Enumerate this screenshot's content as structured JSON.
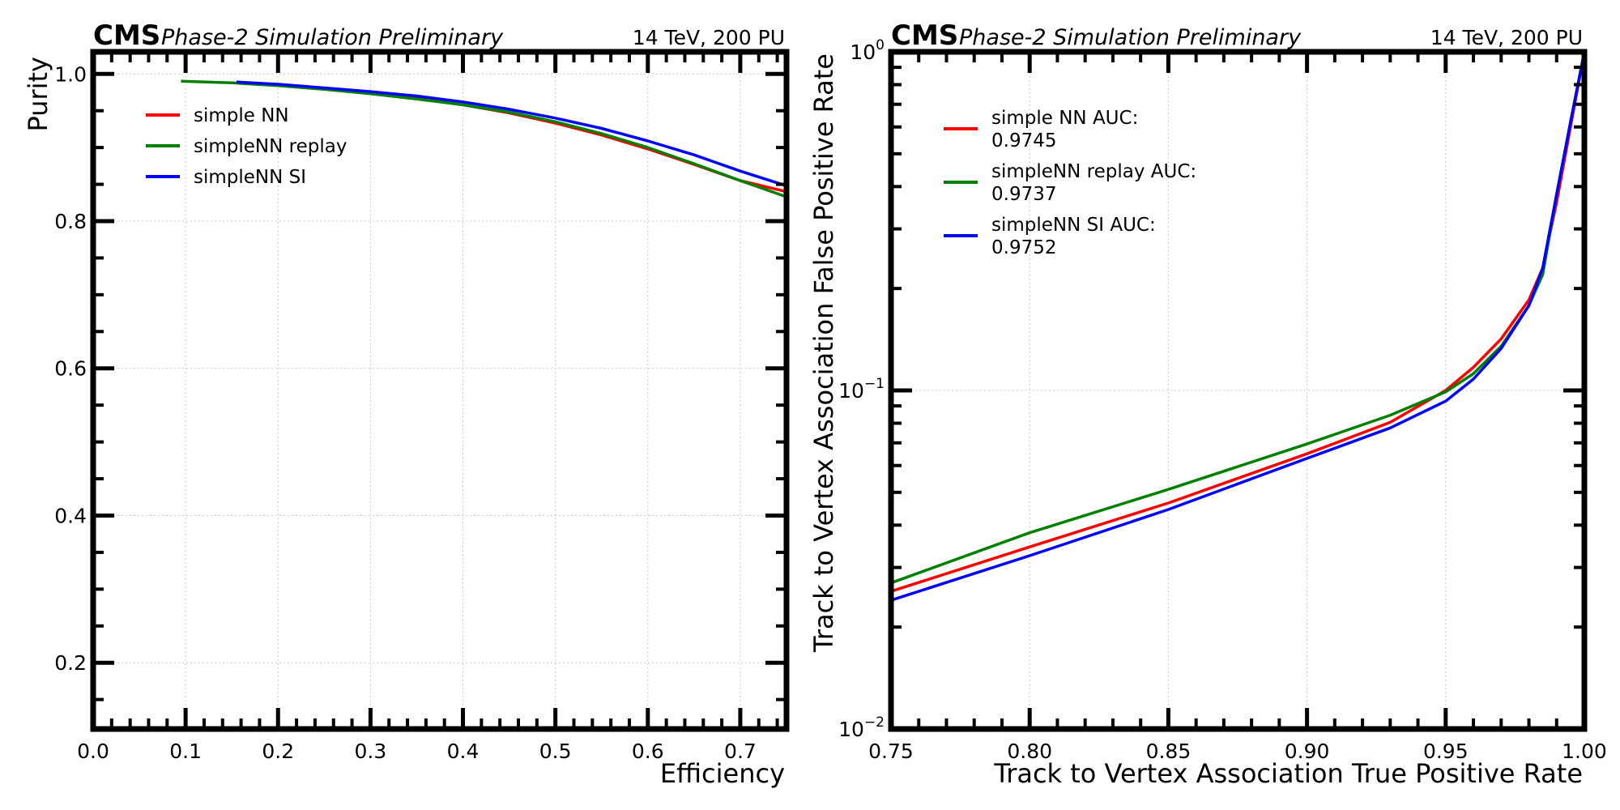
{
  "chart_data": [
    {
      "type": "line",
      "header": {
        "experiment": "CMS",
        "status": "Phase-2 Simulation Preliminary",
        "energy": "14 TeV, 200 PU"
      },
      "title": "",
      "xlabel": "Efficiency",
      "ylabel": "Purity",
      "xlim": [
        0.0,
        0.75
      ],
      "ylim": [
        0.11,
        1.03
      ],
      "xscale": "linear",
      "yscale": "linear",
      "xticks": [
        0.0,
        0.1,
        0.2,
        0.3,
        0.4,
        0.5,
        0.6,
        0.7
      ],
      "xtick_labels": [
        "0.0",
        "0.1",
        "0.2",
        "0.3",
        "0.4",
        "0.5",
        "0.6",
        "0.7"
      ],
      "yticks": [
        0.2,
        0.4,
        0.6,
        0.8,
        1.0
      ],
      "ytick_labels": [
        "0.2",
        "0.4",
        "0.6",
        "0.8",
        "1.0"
      ],
      "grid": true,
      "legend": "upper-left",
      "series": [
        {
          "name": "simple NN",
          "color": "#ff0000",
          "x": [
            0.155,
            0.2,
            0.25,
            0.3,
            0.35,
            0.4,
            0.45,
            0.5,
            0.55,
            0.6,
            0.65,
            0.7,
            0.75
          ],
          "y": [
            0.989,
            0.985,
            0.98,
            0.974,
            0.967,
            0.958,
            0.947,
            0.933,
            0.917,
            0.898,
            0.877,
            0.855,
            0.84
          ]
        },
        {
          "name": "simpleNN replay",
          "color": "#008000",
          "x": [
            0.095,
            0.15,
            0.2,
            0.25,
            0.3,
            0.35,
            0.4,
            0.45,
            0.5,
            0.55,
            0.6,
            0.65,
            0.7,
            0.75
          ],
          "y": [
            0.99,
            0.988,
            0.984,
            0.979,
            0.973,
            0.966,
            0.958,
            0.948,
            0.935,
            0.919,
            0.9,
            0.878,
            0.855,
            0.833
          ]
        },
        {
          "name": "simpleNN SI",
          "color": "#0000ff",
          "x": [
            0.155,
            0.2,
            0.25,
            0.3,
            0.35,
            0.4,
            0.45,
            0.5,
            0.55,
            0.6,
            0.65,
            0.7,
            0.75
          ],
          "y": [
            0.989,
            0.986,
            0.981,
            0.976,
            0.97,
            0.962,
            0.952,
            0.94,
            0.926,
            0.909,
            0.89,
            0.868,
            0.848
          ]
        }
      ]
    },
    {
      "type": "line",
      "header": {
        "experiment": "CMS",
        "status": "Phase-2 Simulation Preliminary",
        "energy": "14 TeV, 200 PU"
      },
      "title": "",
      "xlabel": "Track to Vertex Association True Positive Rate",
      "ylabel": "Track to Vertex Association False Positive Rate",
      "xlim": [
        0.75,
        1.0
      ],
      "ylim": [
        0.01,
        1.0
      ],
      "xscale": "linear",
      "yscale": "log",
      "xticks": [
        0.75,
        0.8,
        0.85,
        0.9,
        0.95,
        1.0
      ],
      "xtick_labels": [
        "0.75",
        "0.80",
        "0.85",
        "0.90",
        "0.95",
        "1.00"
      ],
      "yticks": [
        0.01,
        0.1,
        1.0
      ],
      "ytick_labels": [
        {
          "base": "10",
          "exp": "−2"
        },
        {
          "base": "10",
          "exp": "−1"
        },
        {
          "base": "10",
          "exp": "0"
        }
      ],
      "grid": true,
      "legend": "upper-left",
      "series": [
        {
          "name": "simple NN AUC:",
          "value_label": "0.9745",
          "color": "#ff0000",
          "x": [
            0.75,
            0.8,
            0.85,
            0.9,
            0.93,
            0.95,
            0.96,
            0.97,
            0.98,
            0.985,
            0.99,
            0.995,
            1.0
          ],
          "y": [
            0.0255,
            0.0345,
            0.0465,
            0.065,
            0.0805,
            0.1,
            0.117,
            0.142,
            0.185,
            0.23,
            0.36,
            0.6,
            1.0
          ]
        },
        {
          "name": "simpleNN replay AUC:",
          "value_label": "0.9737",
          "color": "#008000",
          "x": [
            0.75,
            0.8,
            0.85,
            0.9,
            0.93,
            0.95,
            0.96,
            0.97,
            0.98,
            0.985,
            0.99,
            0.995,
            1.0
          ],
          "y": [
            0.027,
            0.038,
            0.051,
            0.0695,
            0.0845,
            0.099,
            0.112,
            0.135,
            0.178,
            0.22,
            0.38,
            0.62,
            1.0
          ]
        },
        {
          "name": "simpleNN SI AUC:",
          "value_label": "0.9752",
          "color": "#0000ff",
          "x": [
            0.75,
            0.8,
            0.85,
            0.9,
            0.93,
            0.95,
            0.96,
            0.97,
            0.98,
            0.985,
            0.99,
            0.995,
            1.0
          ],
          "y": [
            0.024,
            0.0325,
            0.0445,
            0.063,
            0.0775,
            0.093,
            0.108,
            0.133,
            0.178,
            0.23,
            0.38,
            0.62,
            1.0
          ]
        }
      ]
    }
  ]
}
